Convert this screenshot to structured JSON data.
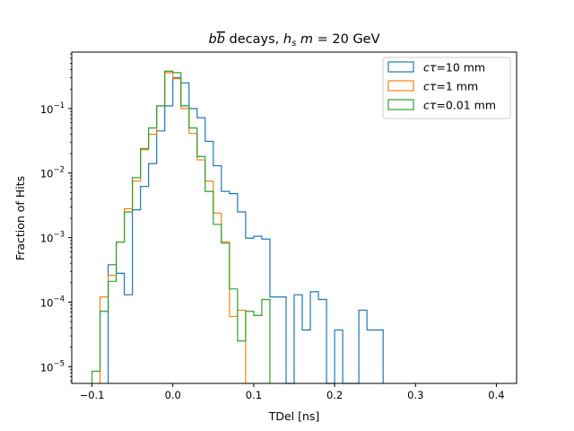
{
  "chart_data": {
    "type": "step-histogram",
    "title": {
      "prefix_b": "b",
      "prefix_bbar": "b",
      "middle": " decays, ",
      "h": "h",
      "h_sub": "s",
      "m": "m",
      "suffix": " = 20 GeV"
    },
    "xlabel": "TDel [ns]",
    "ylabel": "Fraction of Hits",
    "xlim": [
      -0.125,
      0.425
    ],
    "yscale": "log",
    "ylim": [
      5.5e-06,
      0.75
    ],
    "x_ticks": [
      -0.1,
      0.0,
      0.1,
      0.2,
      0.3,
      0.4
    ],
    "x_tick_labels": [
      "−0.1",
      "0.0",
      "0.1",
      "0.2",
      "0.3",
      "0.4"
    ],
    "y_ticks": [
      {
        "value": 1e-05,
        "base": "10",
        "exp": "−5"
      },
      {
        "value": 0.0001,
        "base": "10",
        "exp": "−4"
      },
      {
        "value": 0.001,
        "base": "10",
        "exp": "−3"
      },
      {
        "value": 0.01,
        "base": "10",
        "exp": "−2"
      },
      {
        "value": 0.1,
        "base": "10",
        "exp": "−1"
      }
    ],
    "legend_position": "top-right",
    "grid": false,
    "bin_width": 0.01,
    "series": [
      {
        "name_sym": "cτ",
        "name_rest": "=10 mm",
        "color": "#1f77b4",
        "bins": [
          [
            -0.08,
            0.00038
          ],
          [
            -0.07,
            0.00028
          ],
          [
            -0.06,
            0.00013
          ],
          [
            -0.05,
            0.0027
          ],
          [
            -0.04,
            0.0062
          ],
          [
            -0.03,
            0.014
          ],
          [
            -0.02,
            0.045
          ],
          [
            -0.01,
            0.11
          ],
          [
            0.0,
            0.3
          ],
          [
            0.01,
            0.25
          ],
          [
            0.02,
            0.1
          ],
          [
            0.03,
            0.072
          ],
          [
            0.04,
            0.031
          ],
          [
            0.05,
            0.013
          ],
          [
            0.06,
            0.0052
          ],
          [
            0.07,
            0.0048
          ],
          [
            0.08,
            0.0025
          ],
          [
            0.09,
            0.00098
          ],
          [
            0.1,
            0.00105
          ],
          [
            0.11,
            0.00095
          ],
          [
            0.12,
            0.00012
          ],
          [
            0.13,
            0.00012
          ],
          [
            0.14,
            0.0
          ],
          [
            0.15,
            0.00013
          ],
          [
            0.16,
            3.7e-05
          ],
          [
            0.17,
            0.000145
          ],
          [
            0.18,
            0.00011
          ],
          [
            0.19,
            0.0
          ],
          [
            0.2,
            3.7e-05
          ],
          [
            0.21,
            0.0
          ],
          [
            0.22,
            0.0
          ],
          [
            0.23,
            7.5e-05
          ],
          [
            0.24,
            3.7e-05
          ],
          [
            0.25,
            3.7e-05
          ]
        ]
      },
      {
        "name_sym": "cτ",
        "name_rest": "=1 mm",
        "color": "#ff7f0e",
        "bins": [
          [
            -0.09,
            0.00012
          ],
          [
            -0.08,
            0.00026
          ],
          [
            -0.07,
            0.00085
          ],
          [
            -0.06,
            0.0028
          ],
          [
            -0.05,
            0.0075
          ],
          [
            -0.04,
            0.023
          ],
          [
            -0.03,
            0.04
          ],
          [
            -0.02,
            0.11
          ],
          [
            -0.01,
            0.36
          ],
          [
            0.0,
            0.29
          ],
          [
            0.01,
            0.1
          ],
          [
            0.02,
            0.041
          ],
          [
            0.03,
            0.016
          ],
          [
            0.04,
            0.0075
          ],
          [
            0.05,
            0.0024
          ],
          [
            0.06,
            0.00086
          ],
          [
            0.07,
            6e-05
          ],
          [
            0.08,
            7.5e-05
          ]
        ]
      },
      {
        "name_sym": "cτ",
        "name_rest": "=0.01 mm",
        "color": "#2ca02c",
        "bins": [
          [
            -0.1,
            8.5e-06
          ],
          [
            -0.09,
            7.2e-05
          ],
          [
            -0.08,
            0.00021
          ],
          [
            -0.07,
            0.00085
          ],
          [
            -0.06,
            0.0025
          ],
          [
            -0.05,
            0.0085
          ],
          [
            -0.04,
            0.024
          ],
          [
            -0.03,
            0.05
          ],
          [
            -0.02,
            0.11
          ],
          [
            -0.01,
            0.38
          ],
          [
            0.0,
            0.36
          ],
          [
            0.01,
            0.11
          ],
          [
            0.02,
            0.05
          ],
          [
            0.03,
            0.018
          ],
          [
            0.04,
            0.0052
          ],
          [
            0.05,
            0.0016
          ],
          [
            0.06,
            0.00082
          ],
          [
            0.07,
            0.00016
          ],
          [
            0.08,
            2.5e-05
          ],
          [
            0.09,
            7.2e-05
          ],
          [
            0.1,
            6.2e-05
          ],
          [
            0.11,
            0.00011
          ]
        ]
      }
    ]
  }
}
